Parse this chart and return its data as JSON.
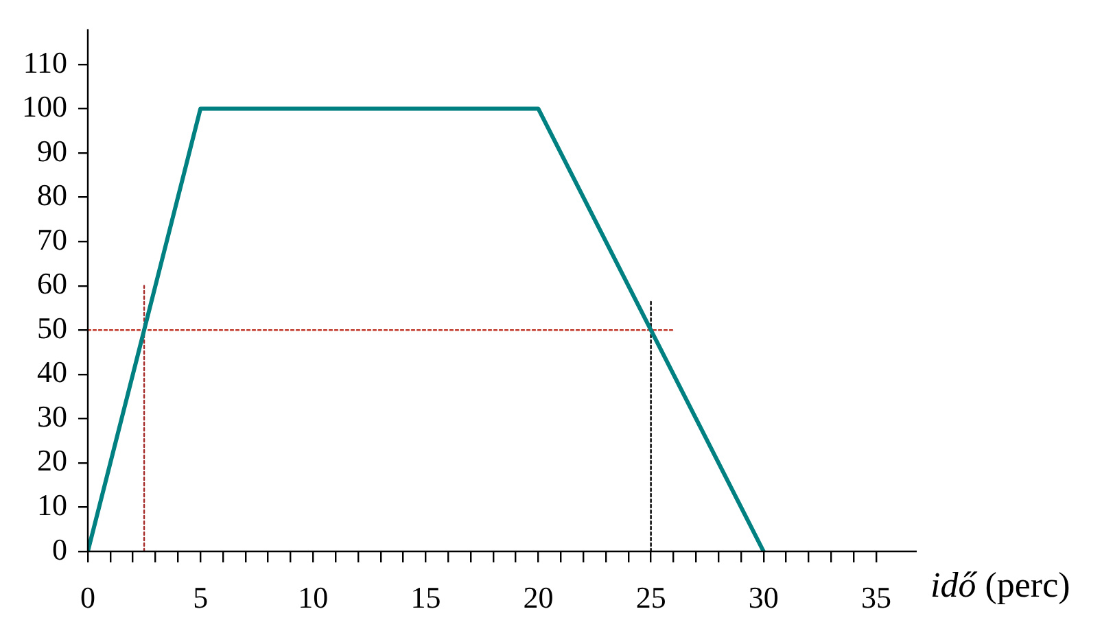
{
  "chart_data": {
    "type": "line",
    "xlabel": "idő (perc)",
    "xlim": [
      0,
      36.8
    ],
    "ylim": [
      0,
      118
    ],
    "xticks": [
      0,
      {
        "value": 1,
        "label": null
      },
      {
        "value": 2,
        "label": null
      },
      {
        "value": 3,
        "label": null
      },
      {
        "value": 4,
        "label": null
      },
      5,
      {
        "value": 6,
        "label": null
      },
      {
        "value": 7,
        "label": null
      },
      {
        "value": 8,
        "label": null
      },
      {
        "value": 9,
        "label": null
      },
      10,
      {
        "value": 11,
        "label": null
      },
      {
        "value": 12,
        "label": null
      },
      {
        "value": 13,
        "label": null
      },
      {
        "value": 14,
        "label": null
      },
      15,
      {
        "value": 16,
        "label": null
      },
      {
        "value": 17,
        "label": null
      },
      {
        "value": 18,
        "label": null
      },
      {
        "value": 19,
        "label": null
      },
      20,
      {
        "value": 21,
        "label": null
      },
      {
        "value": 22,
        "label": null
      },
      {
        "value": 23,
        "label": null
      },
      {
        "value": 24,
        "label": null
      },
      25,
      {
        "value": 26,
        "label": null
      },
      {
        "value": 27,
        "label": null
      },
      {
        "value": 28,
        "label": null
      },
      {
        "value": 29,
        "label": null
      },
      30,
      {
        "value": 31,
        "label": null
      },
      {
        "value": 32,
        "label": null
      },
      {
        "value": 33,
        "label": null
      },
      {
        "value": 34,
        "label": null
      },
      35
    ],
    "yticks": [
      0,
      10,
      20,
      30,
      40,
      50,
      60,
      70,
      80,
      90,
      100,
      110
    ],
    "grid": false,
    "legend": false,
    "marker": "none",
    "series": [
      {
        "color": "#008080",
        "x": [
          0,
          5,
          20,
          30
        ],
        "values": [
          0,
          100,
          100,
          0
        ],
        "line_style": "solid"
      },
      {
        "color": "#c0392b",
        "x": [
          0,
          26
        ],
        "values": [
          50,
          50
        ],
        "line_style": "dotted"
      },
      {
        "color": "#a52a2a",
        "x": [
          2.5,
          2.5
        ],
        "values": [
          0,
          60
        ],
        "line_style": "dotted"
      },
      {
        "color": "#000000",
        "x": [
          25,
          25
        ],
        "values": [
          0,
          57
        ],
        "line_style": "dotted"
      }
    ]
  }
}
